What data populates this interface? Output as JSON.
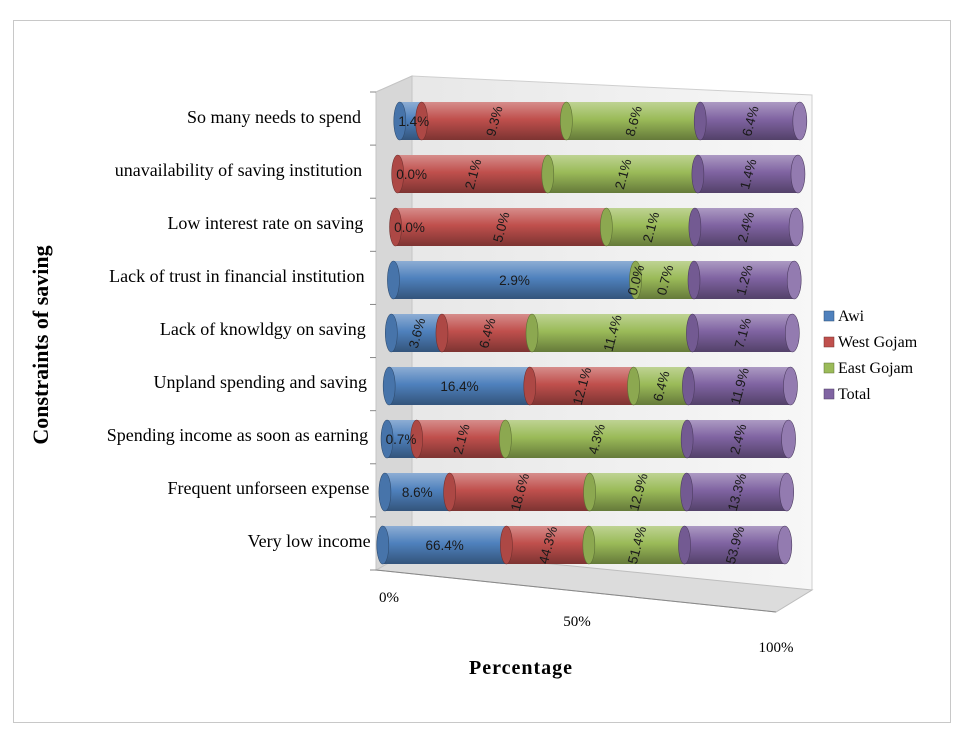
{
  "chart_data": {
    "type": "bar",
    "orientation": "horizontal",
    "stacking": "percent",
    "style": "3d-cylinder",
    "title": "",
    "xlabel": "Percentage",
    "ylabel": "Constraints of saving",
    "xlim": [
      0,
      100
    ],
    "x_ticks": [
      "0%",
      "50%",
      "100%"
    ],
    "legend_position": "right",
    "grid": false,
    "categories": [
      "So many needs to spend",
      "unavailability of saving institution",
      "Low interest rate on saving",
      "Lack of trust in financial institution",
      "Lack of knowldgy on saving",
      "Unpland spending and saving",
      "Spending income as soon as earning",
      "Frequent unforseen expense",
      "Very low income"
    ],
    "series": [
      {
        "name": "Awi",
        "color": "#4f81bd",
        "values": [
          1.4,
          0.0,
          0.0,
          2.9,
          3.6,
          16.4,
          0.7,
          8.6,
          66.4
        ],
        "labels": [
          "1.4%",
          "0.0%",
          "0.0%",
          "2.9%",
          "3.6%",
          "16.4%",
          "0.7%",
          "8.6%",
          "66.4%"
        ]
      },
      {
        "name": "West Gojam",
        "color": "#c0504d",
        "values": [
          9.3,
          2.1,
          5.0,
          0.0,
          6.4,
          12.1,
          2.1,
          18.6,
          44.3
        ],
        "labels": [
          "9.3%",
          "2.1%",
          "5.0%",
          "0.0%",
          "6.4%",
          "12.1%",
          "2.1%",
          "18.6%",
          "44.3%"
        ]
      },
      {
        "name": "East Gojam",
        "color": "#9bbb59",
        "values": [
          8.6,
          2.1,
          2.1,
          0.7,
          11.4,
          6.4,
          4.3,
          12.9,
          51.4
        ],
        "labels": [
          "8.6%",
          "2.1%",
          "2.1%",
          "0.7%",
          "11.4%",
          "6.4%",
          "4.3%",
          "12.9%",
          "51.4%"
        ]
      },
      {
        "name": "Total",
        "color": "#8064a2",
        "values": [
          6.4,
          1.4,
          2.4,
          1.2,
          7.1,
          11.9,
          2.4,
          13.3,
          53.9
        ],
        "labels": [
          "6.4%",
          "1.4%",
          "2.4%",
          "1.2%",
          "7.1%",
          "11.9%",
          "2.4%",
          "13.3%",
          "53.9%"
        ]
      }
    ]
  }
}
